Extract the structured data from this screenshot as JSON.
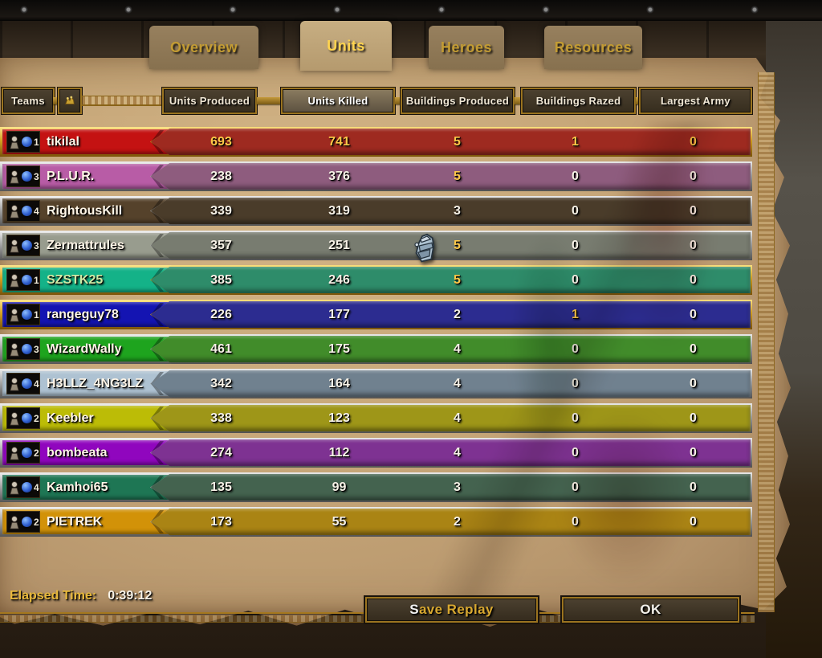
{
  "tabs": [
    {
      "label": "Overview",
      "active": false
    },
    {
      "label": "Units",
      "active": true
    },
    {
      "label": "Heroes",
      "active": false
    },
    {
      "label": "Resources",
      "active": false
    }
  ],
  "toolbar": {
    "teams_label": "Teams",
    "share_icon": "gauntlet-icon"
  },
  "stat_tabs": [
    {
      "label": "Units Produced",
      "active": false
    },
    {
      "label": "Units Killed",
      "active": true
    },
    {
      "label": "Buildings Produced",
      "active": false
    },
    {
      "label": "Buildings Razed",
      "active": false
    },
    {
      "label": "Largest Army",
      "active": false
    }
  ],
  "players": [
    {
      "name": "tikilal",
      "team": "1",
      "ally": true,
      "plate_color": "#c41212",
      "bar_color": "#9e2a20",
      "name_color": "#fff6e8",
      "values": [
        693,
        741,
        5,
        1,
        0
      ],
      "gold": [
        true,
        true,
        true,
        true,
        true
      ]
    },
    {
      "name": "P.L.U.R.",
      "team": "3",
      "ally": false,
      "plate_color": "#b85ca6",
      "bar_color": "#8e5c7e",
      "name_color": "#fff6e8",
      "values": [
        238,
        376,
        5,
        0,
        0
      ],
      "gold": [
        false,
        false,
        true,
        false,
        false
      ]
    },
    {
      "name": "RightousKill",
      "team": "4",
      "ally": false,
      "plate_color": "#55422b",
      "bar_color": "#4a3c2a",
      "name_color": "#fff6e8",
      "values": [
        339,
        319,
        3,
        0,
        0
      ],
      "gold": [
        false,
        false,
        false,
        false,
        false
      ]
    },
    {
      "name": "Zermattrules",
      "team": "3",
      "ally": false,
      "plate_color": "#989c8e",
      "bar_color": "#787c70",
      "name_color": "#fff6e8",
      "values": [
        357,
        251,
        5,
        0,
        0
      ],
      "gold": [
        false,
        false,
        true,
        false,
        false
      ]
    },
    {
      "name": "SZSTK25",
      "team": "1",
      "ally": true,
      "plate_color": "#14b288",
      "bar_color": "#2e8c6a",
      "name_color": "#cfeba6",
      "values": [
        385,
        246,
        5,
        0,
        0
      ],
      "gold": [
        false,
        false,
        true,
        false,
        false
      ]
    },
    {
      "name": "rangeguy78",
      "team": "1",
      "ally": true,
      "plate_color": "#1414b2",
      "bar_color": "#2c2c90",
      "name_color": "#fff6e8",
      "values": [
        226,
        177,
        2,
        1,
        0
      ],
      "gold": [
        false,
        false,
        false,
        true,
        false
      ]
    },
    {
      "name": "WizardWally",
      "team": "3",
      "ally": false,
      "plate_color": "#1ea41e",
      "bar_color": "#418c2a",
      "name_color": "#fff6e8",
      "values": [
        461,
        175,
        4,
        0,
        0
      ],
      "gold": [
        false,
        false,
        false,
        false,
        false
      ]
    },
    {
      "name": "H3LLZ_4NG3LZ",
      "team": "4",
      "ally": false,
      "plate_color": "#aec2d2",
      "bar_color": "#70818f",
      "name_color": "#fff6e8",
      "values": [
        342,
        164,
        4,
        0,
        0
      ],
      "gold": [
        false,
        false,
        false,
        false,
        false
      ]
    },
    {
      "name": "Keebler",
      "team": "2",
      "ally": false,
      "plate_color": "#bcbc06",
      "bar_color": "#9e9618",
      "name_color": "#fff6e8",
      "values": [
        338,
        123,
        4,
        0,
        0
      ],
      "gold": [
        false,
        false,
        false,
        false,
        false
      ]
    },
    {
      "name": "bombeata",
      "team": "2",
      "ally": false,
      "plate_color": "#9006be",
      "bar_color": "#7e3292",
      "name_color": "#fff6e8",
      "values": [
        274,
        112,
        4,
        0,
        0
      ],
      "gold": [
        false,
        false,
        false,
        false,
        false
      ]
    },
    {
      "name": "Kamhoi65",
      "team": "4",
      "ally": false,
      "plate_color": "#1e7654",
      "bar_color": "#44634f",
      "name_color": "#fff6e8",
      "values": [
        135,
        99,
        3,
        0,
        0
      ],
      "gold": [
        false,
        false,
        false,
        false,
        false
      ]
    },
    {
      "name": "PIETREK",
      "team": "2",
      "ally": false,
      "plate_color": "#d29208",
      "bar_color": "#aa8414",
      "name_color": "#fff6e8",
      "values": [
        173,
        55,
        2,
        0,
        0
      ],
      "gold": [
        false,
        false,
        false,
        false,
        false
      ]
    }
  ],
  "footer": {
    "elapsed_label": "Elapsed Time:",
    "elapsed_value": "0:39:12",
    "save_replay_hotkey": "S",
    "save_replay_rest": "ave Replay",
    "ok_label": "OK"
  },
  "colors": {
    "gold_value_text": "#ffc848",
    "white_value_text": "#f6f1e6",
    "accent_gold": "#a5781e",
    "active_tab_text": "#ffd44f",
    "inactive_tab_text": "#c39c33"
  },
  "icons": {
    "cursor": "gauntlet-cursor-icon",
    "row_badge": "peasant-icon",
    "team_orb": "blue-orb-icon"
  }
}
